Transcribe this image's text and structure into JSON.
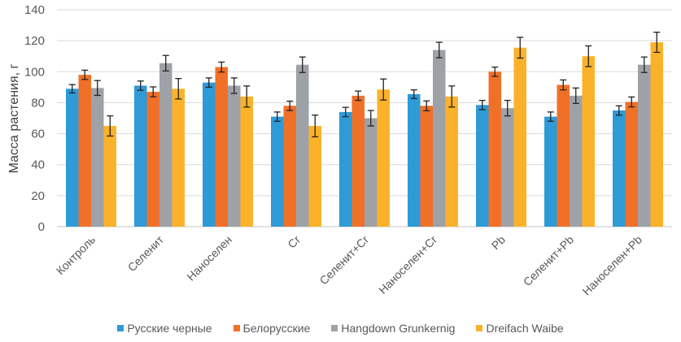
{
  "chart_data": {
    "type": "bar",
    "title": "",
    "xlabel": "",
    "ylabel": "Масса растения, г",
    "ylim": [
      0,
      140
    ],
    "yticks": [
      0,
      20,
      40,
      60,
      80,
      100,
      120,
      140
    ],
    "grid": true,
    "legend_position": "bottom",
    "categories": [
      "Контроль",
      "Селенит",
      "Наноселен",
      "Cr",
      "Селенит+Cr",
      "Наноселен+Cr",
      "Pb",
      "Селенит+Pb",
      "Наноселен+Pb"
    ],
    "series": [
      {
        "name": "Русские черные",
        "color": "#2E9AD6",
        "values": [
          89,
          91,
          93,
          71,
          74,
          85.5,
          78.5,
          71,
          75
        ],
        "errors": [
          2.7,
          3,
          3,
          3,
          3,
          2.8,
          3,
          3,
          3
        ]
      },
      {
        "name": "Белорусские",
        "color": "#F07028",
        "values": [
          98,
          87,
          103,
          78,
          84.5,
          78,
          100,
          91.5,
          80.5
        ],
        "errors": [
          3,
          3.2,
          3.2,
          3,
          3,
          3.2,
          3,
          3.2,
          3.2
        ]
      },
      {
        "name": "Hangdown Grunkernig",
        "color": "#9EA2A6",
        "values": [
          89.5,
          105.5,
          91,
          104.5,
          70,
          114,
          76.5,
          84.5,
          104.5
        ],
        "errors": [
          4.8,
          5,
          5,
          5,
          5,
          5,
          5,
          5,
          5
        ]
      },
      {
        "name": "Dreifach Waibe",
        "color": "#FBB22A",
        "values": [
          65,
          89,
          84,
          65,
          88.5,
          84,
          115.5,
          110,
          119
        ],
        "errors": [
          6.5,
          6.6,
          6.8,
          7,
          6.8,
          6.8,
          6.7,
          6.7,
          6.5
        ]
      }
    ]
  }
}
